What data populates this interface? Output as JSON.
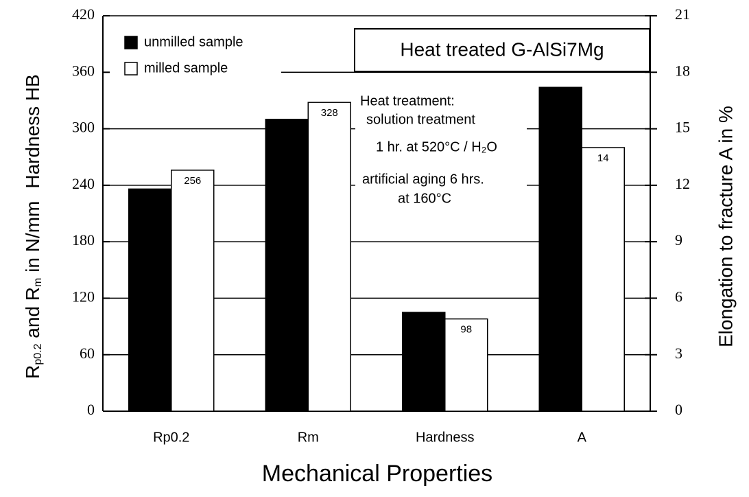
{
  "chart_data": {
    "type": "bar",
    "title": "Heat treated G-AlSi7Mg",
    "x_label": "Mechanical Properties",
    "y_label": [
      "R",
      "p0.2",
      " and R",
      "m",
      " in N/mm",
      "Hardness HB"
    ],
    "y2_label": "Elongation to fracture A in %",
    "annotation": [
      "Heat treatment:",
      "solution treatment",
      "1 hr. at 520°C / H₂O",
      "artificial aging 6 hrs.",
      "at 160°C"
    ],
    "categories": [
      "Rp0.2",
      "Rm",
      "Hardness",
      "A"
    ],
    "category_axes": [
      "y",
      "y",
      "y",
      "y2"
    ],
    "series": [
      {
        "name": "unmilled sample",
        "color": "#000000",
        "values": [
          236,
          310,
          105,
          17.2
        ]
      },
      {
        "name": "milled sample",
        "color": "#ffffff",
        "values": [
          256,
          328,
          98,
          14
        ],
        "value_labels": [
          "256",
          "328",
          "98",
          "14"
        ]
      }
    ],
    "ylim": [
      0,
      420
    ],
    "yticks": [
      0,
      60,
      120,
      180,
      240,
      300,
      360,
      420
    ],
    "y2lim": [
      0,
      21
    ],
    "y2ticks": [
      0,
      3,
      6,
      9,
      12,
      15,
      18,
      21
    ],
    "grid": true
  }
}
